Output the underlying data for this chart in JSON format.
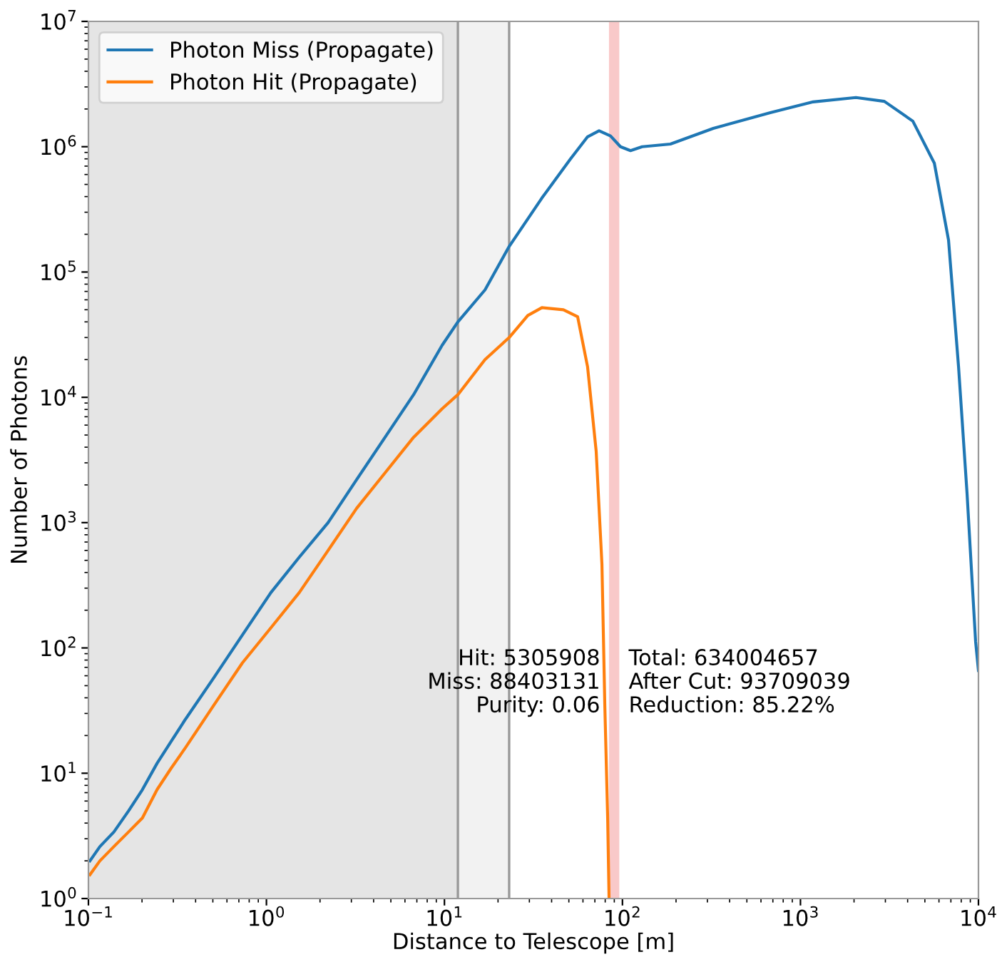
{
  "chart_data": {
    "type": "line",
    "xlabel": "Distance to Telescope [m]",
    "ylabel": "Number of Photons",
    "log": "xy",
    "grid": false,
    "legend": "top left",
    "xlim": [
      0.1,
      10000
    ],
    "ylim": [
      1,
      10000000
    ],
    "xticks": [
      {
        "value": 0.1,
        "label": "10$^{−1}$"
      },
      {
        "value": 1,
        "label": "10$^{0}$"
      },
      {
        "value": 10,
        "label": "10$^{1}$"
      },
      {
        "value": 100,
        "label": "10$^{2}$"
      },
      {
        "value": 1000,
        "label": "10$^{3}$"
      },
      {
        "value": 10000,
        "label": "10$^{4}$"
      }
    ],
    "yticks": [
      {
        "value": 1,
        "label": "10$^{0}$"
      },
      {
        "value": 10,
        "label": "10$^{1}$"
      },
      {
        "value": 100,
        "label": "10$^{2}$"
      },
      {
        "value": 1000,
        "label": "10$^{3}$"
      },
      {
        "value": 10000,
        "label": "10$^{4}$"
      },
      {
        "value": 100000,
        "label": "10$^{5}$"
      },
      {
        "value": 1000000,
        "label": "10$^{6}$"
      },
      {
        "value": 10000000,
        "label": "10$^{7}$"
      }
    ],
    "bands": [
      {
        "axis": "x",
        "from": 0.1,
        "to": 11.9,
        "color": "#e5e5e5"
      },
      {
        "axis": "x",
        "from": 11.9,
        "to": 23.1,
        "color": "#f2f2f2"
      },
      {
        "axis": "x",
        "from": 84,
        "to": 96,
        "color": "#f9c9c9"
      }
    ],
    "ref_lines": [
      {
        "axis": "x",
        "value": 11.9,
        "color": "#999999"
      },
      {
        "axis": "x",
        "value": 23.1,
        "color": "#999999"
      }
    ],
    "series": [
      {
        "name": "Photon Miss (Propagate)",
        "color": "#1f77b4",
        "x": [
          0.102,
          0.116,
          0.139,
          0.168,
          0.201,
          0.243,
          0.292,
          0.351,
          0.507,
          0.733,
          1.06,
          1.53,
          2.22,
          3.21,
          4.64,
          6.71,
          9.7,
          11.9,
          16.9,
          23.1,
          35.3,
          51.1,
          63.7,
          73.9,
          85.7,
          97.5,
          111,
          129,
          186,
          324,
          677,
          1180,
          2050,
          2960,
          4280,
          5650,
          6790,
          7730,
          8630,
          9290,
          9640,
          10000
        ],
        "values": [
          2,
          2.6,
          3.4,
          5,
          7.4,
          12,
          18,
          27,
          58,
          127,
          277,
          530,
          1000,
          2200,
          4800,
          10500,
          26000,
          40000,
          72000,
          160000,
          390000,
          800000,
          1200000,
          1340000,
          1220000,
          1000000,
          930000,
          1000000,
          1050000,
          1400000,
          1870000,
          2280000,
          2470000,
          2300000,
          1600000,
          740000,
          180000,
          17500,
          1700,
          277,
          112,
          66
        ]
      },
      {
        "name": "Photon Hit (Propagate)",
        "color": "#ff7f0e",
        "x": [
          0.102,
          0.116,
          0.139,
          0.168,
          0.201,
          0.243,
          0.292,
          0.351,
          0.507,
          0.733,
          1.06,
          1.53,
          2.22,
          3.21,
          4.64,
          6.71,
          9.7,
          11.9,
          16.9,
          23.1,
          29.4,
          35.3,
          46.6,
          56.0,
          63.7,
          71.2,
          76.7,
          79.6,
          82.6,
          84.1
        ],
        "values": [
          1.55,
          2,
          2.6,
          3.4,
          4.4,
          7.4,
          11,
          16,
          35,
          76,
          145,
          277,
          600,
          1300,
          2500,
          4800,
          8100,
          10500,
          20000,
          30000,
          45000,
          52000,
          50000,
          44000,
          17500,
          3700,
          465,
          35,
          4.4,
          1
        ]
      }
    ],
    "annotations": [
      "Hit: 5305908\nMiss: 88403131\nPurity: 0.06",
      "Total: 634004657\nAfter Cut: 93709039\nReduction: 85.22%"
    ]
  }
}
